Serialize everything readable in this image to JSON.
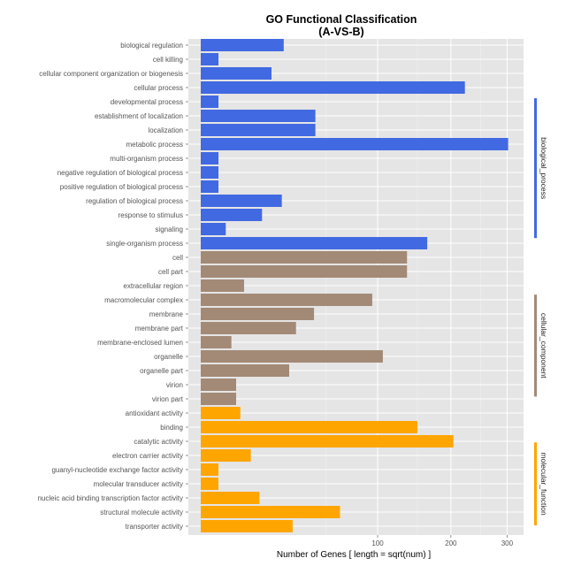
{
  "chart_data": {
    "type": "bar",
    "orientation": "horizontal",
    "title": "GO Functional Classification",
    "subtitle": "(A-VS-B)",
    "xlabel": "Number of Genes [ length = sqrt(num) ]",
    "ylabel": "",
    "x_scale": "sqrt",
    "x_ticks": [
      100,
      200,
      300
    ],
    "grid": true,
    "legend_position": "right",
    "groups": [
      {
        "name": "biological_process",
        "color": "#4169E1",
        "categories": [
          "biological regulation",
          "cell killing",
          "cellular component organization or biogenesis",
          "cellular process",
          "developmental process",
          "establishment of localization",
          "localization",
          "metabolic process",
          "multi-organism process",
          "negative regulation of biological process",
          "positive regulation of biological process",
          "regulation of biological process",
          "response to stimulus",
          "signaling",
          "single-organism process"
        ],
        "values": [
          22,
          1,
          16,
          223,
          1,
          42,
          42,
          302,
          1,
          1,
          1,
          21,
          12,
          2,
          164
        ]
      },
      {
        "name": "cellular_component",
        "color": "#A38A76",
        "categories": [
          "cell",
          "cell part",
          "extracellular region",
          "macromolecular complex",
          "membrane",
          "membrane part",
          "membrane-enclosed lumen",
          "organelle",
          "organelle part",
          "virion",
          "virion part"
        ],
        "values": [
          136,
          136,
          6,
          94,
          41,
          29,
          3,
          106,
          25,
          4,
          4
        ]
      },
      {
        "name": "molecular_function",
        "color": "#FFA500",
        "categories": [
          "antioxidant activity",
          "binding",
          "catalytic activity",
          "electron carrier activity",
          "guanyl-nucleotide exchange factor activity",
          "molecular transducer activity",
          "nucleic acid binding transcription factor activity",
          "structural molecule activity",
          "transporter activity"
        ],
        "values": [
          5,
          150,
          204,
          8,
          1,
          1,
          11,
          62,
          27
        ]
      }
    ]
  }
}
